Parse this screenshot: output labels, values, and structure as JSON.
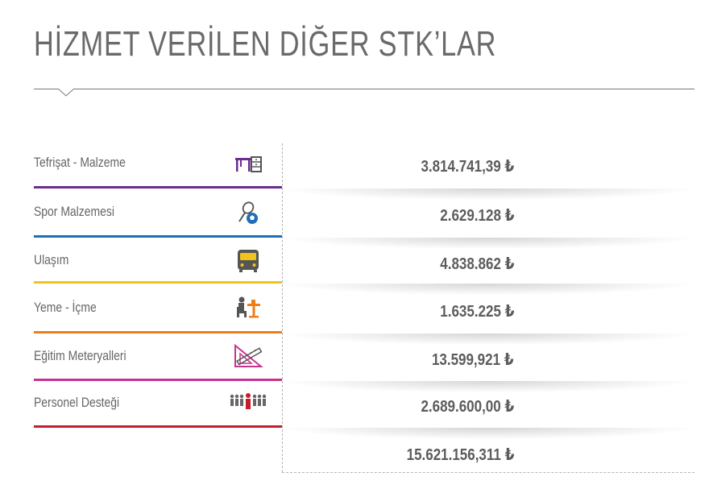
{
  "title": "HİZMET VERİLEN DİĞER STK’LAR",
  "currency_symbol": "₺",
  "rows": [
    {
      "label": "Tefrişat - Malzeme",
      "value": "3.814.741,39",
      "color": "#6b2d8e",
      "icon": "furniture-icon"
    },
    {
      "label": "Spor Malzemesi",
      "value": "2.629.128",
      "color": "#1f6fb8",
      "icon": "sports-equipment-icon"
    },
    {
      "label": "Ulaşım",
      "value": "4.838.862",
      "color": "#f2c31b",
      "icon": "bus-icon"
    },
    {
      "label": "Yeme - İçme",
      "value": "1.635.225",
      "color": "#ef7d1a",
      "icon": "dining-icon"
    },
    {
      "label": "Eğitim Meteryalleri",
      "value": "13.599,921",
      "color": "#c8338f",
      "icon": "ruler-set-icon"
    },
    {
      "label": "Personel Desteği",
      "value": "2.689.600,00",
      "color": "#c41e2a",
      "icon": "personnel-group-icon"
    }
  ],
  "total": {
    "value": "15.621.156,311"
  }
}
